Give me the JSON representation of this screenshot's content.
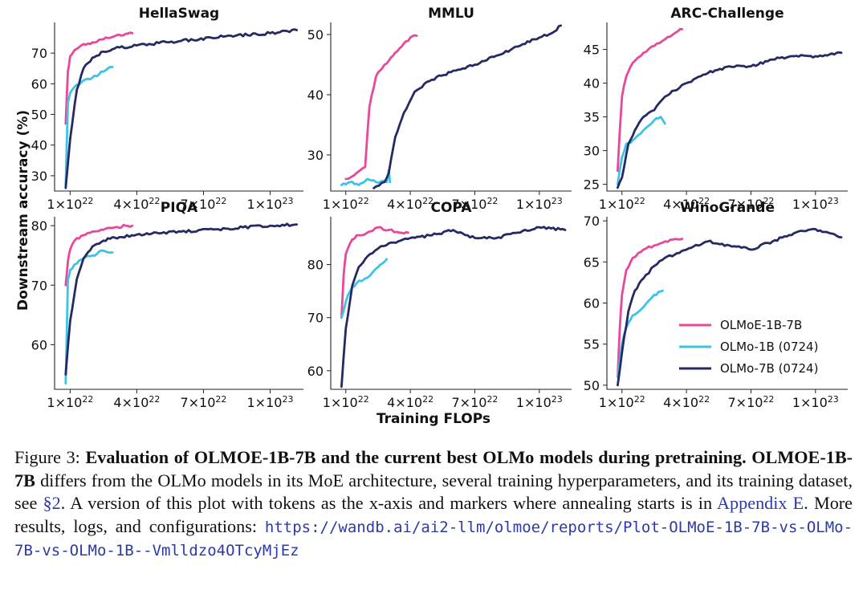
{
  "figure": {
    "y_axis_label": "Downstream accuracy (%)",
    "x_axis_label": "Training FLOPs",
    "legend": [
      {
        "label": "OLMoE-1B-7B",
        "color": "#e8489a"
      },
      {
        "label": "OLMo-1B (0724)",
        "color": "#3cc4e6"
      },
      {
        "label": "OLMo-7B (0724)",
        "color": "#262a63"
      }
    ],
    "x_ticks": [
      {
        "value": 1e+22,
        "base": "1×10",
        "exp": "22"
      },
      {
        "value": 4e+22,
        "base": "4×10",
        "exp": "22"
      },
      {
        "value": 7e+22,
        "base": "7×10",
        "exp": "22"
      },
      {
        "value": 1e+23,
        "base": "1×10",
        "exp": "23"
      }
    ]
  },
  "chart_data": [
    {
      "type": "line",
      "title": "HellaSwag",
      "ylim": [
        25,
        80
      ],
      "yticks": [
        70,
        60,
        50,
        40,
        30
      ],
      "xlim": [
        3e+21,
        1.15e+23
      ],
      "series": [
        {
          "name": "OLMoE-1B-7B",
          "x": [
            8e+21,
            9e+21,
            1e+22,
            1.2e+22,
            1.5e+22,
            2e+22,
            2.5e+22,
            3e+22,
            3.5e+22,
            3.8e+22
          ],
          "y": [
            47,
            64,
            69,
            71,
            72.5,
            73.5,
            74.5,
            75.5,
            76.3,
            76.5
          ]
        },
        {
          "name": "OLMo-1B (0724)",
          "x": [
            8e+21,
            9e+21,
            1e+22,
            1.2e+22,
            1.5e+22,
            2e+22,
            2.5e+22,
            2.9e+22
          ],
          "y": [
            27,
            54,
            57,
            59,
            60.5,
            62,
            64,
            65.5
          ]
        },
        {
          "name": "OLMo-7B (0724)",
          "x": [
            8e+21,
            1e+22,
            1.3e+22,
            1.6e+22,
            2e+22,
            2.5e+22,
            3e+22,
            4e+22,
            5e+22,
            6e+22,
            8e+22,
            1e+23,
            1.12e+23
          ],
          "y": [
            26,
            42,
            58,
            65,
            68.5,
            70.5,
            71.5,
            72.5,
            73.3,
            74,
            75.5,
            76.5,
            77.5
          ]
        }
      ]
    },
    {
      "type": "line",
      "title": "MMLU",
      "ylim": [
        24,
        52
      ],
      "yticks": [
        50,
        40,
        30
      ],
      "xlim": [
        3e+21,
        1.15e+23
      ],
      "series": [
        {
          "name": "OLMoE-1B-7B",
          "x": [
            1e+22,
            1.5e+22,
            1.9e+22,
            2.1e+22,
            2.4e+22,
            2.8e+22,
            3.2e+22,
            3.6e+22,
            4e+22,
            4.3e+22
          ],
          "y": [
            26,
            27,
            28,
            38,
            43,
            45,
            46.5,
            48,
            49.5,
            49.8
          ]
        },
        {
          "name": "OLMo-1B (0724)",
          "x": [
            8e+21,
            1.2e+22,
            1.6e+22,
            2e+22,
            2.4e+22,
            2.9e+22,
            3e+22,
            3.05e+22
          ],
          "y": [
            25,
            25.5,
            25,
            26,
            25.5,
            25.5,
            27.5,
            25.5
          ]
        },
        {
          "name": "OLMo-7B (0724)",
          "x": [
            2.3e+22,
            2.8e+22,
            3e+22,
            3.3e+22,
            3.7e+22,
            4.2e+22,
            5e+22,
            6e+22,
            7e+22,
            8e+22,
            9e+22,
            1e+23,
            1.07e+23,
            1.1e+23
          ],
          "y": [
            24.5,
            25.5,
            27,
            33,
            37,
            40.5,
            42.5,
            44,
            45,
            46.5,
            48,
            49.5,
            50.5,
            51.5
          ]
        }
      ]
    },
    {
      "type": "line",
      "title": "ARC-Challenge",
      "ylim": [
        24,
        49
      ],
      "yticks": [
        45,
        40,
        35,
        30,
        25
      ],
      "xlim": [
        3e+21,
        1.15e+23
      ],
      "series": [
        {
          "name": "OLMoE-1B-7B",
          "x": [
            8e+21,
            9e+21,
            1e+22,
            1.2e+22,
            1.5e+22,
            2e+22,
            2.5e+22,
            3e+22,
            3.5e+22,
            3.8e+22
          ],
          "y": [
            27,
            33,
            38,
            41,
            43,
            44.5,
            45.5,
            46.5,
            47.5,
            48
          ]
        },
        {
          "name": "OLMo-1B (0724)",
          "x": [
            8e+21,
            1e+22,
            1.2e+22,
            1.5e+22,
            2e+22,
            2.5e+22,
            2.8e+22,
            3e+22
          ],
          "y": [
            25,
            29,
            31,
            31.5,
            33,
            34.5,
            35,
            34
          ]
        },
        {
          "name": "OLMo-7B (0724)",
          "x": [
            8e+21,
            1e+22,
            1.3e+22,
            1.6e+22,
            2e+22,
            2.5e+22,
            3e+22,
            4e+22,
            5e+22,
            6e+22,
            7e+22,
            8e+22,
            9e+22,
            1e+23,
            1.12e+23
          ],
          "y": [
            24.5,
            26,
            31,
            33,
            35,
            36,
            38,
            40,
            41.5,
            42.5,
            42.5,
            43.5,
            44,
            44,
            44.5
          ]
        }
      ]
    },
    {
      "type": "line",
      "title": "PIQA",
      "ylim": [
        52.5,
        81.5
      ],
      "yticks": [
        80,
        70,
        60
      ],
      "xlim": [
        3e+21,
        1.15e+23
      ],
      "series": [
        {
          "name": "OLMoE-1B-7B",
          "x": [
            8e+21,
            9e+21,
            1e+22,
            1.2e+22,
            1.5e+22,
            2e+22,
            2.5e+22,
            3e+22,
            3.5e+22,
            3.8e+22
          ],
          "y": [
            70,
            74,
            76,
            77.5,
            78.3,
            79,
            79.3,
            79.7,
            80,
            80
          ]
        },
        {
          "name": "OLMo-1B (0724)",
          "x": [
            8e+21,
            9e+21,
            1e+22,
            1.2e+22,
            1.5e+22,
            2e+22,
            2.5e+22,
            2.9e+22
          ],
          "y": [
            53.5,
            71,
            72.5,
            73.5,
            74.3,
            75,
            75.8,
            75.5
          ]
        },
        {
          "name": "OLMo-7B (0724)",
          "x": [
            8e+21,
            1e+22,
            1.3e+22,
            1.6e+22,
            2e+22,
            2.5e+22,
            3e+22,
            4e+22,
            5e+22,
            6e+22,
            8e+22,
            1e+23,
            1.12e+23
          ],
          "y": [
            55,
            64,
            71,
            74.5,
            76.5,
            77.5,
            78,
            78.5,
            78.7,
            79,
            79.5,
            80,
            80.2
          ]
        }
      ]
    },
    {
      "type": "line",
      "title": "COPA",
      "ylim": [
        56.5,
        89
      ],
      "yticks": [
        80,
        70,
        60
      ],
      "xlim": [
        3e+21,
        1.15e+23
      ],
      "series": [
        {
          "name": "OLMoE-1B-7B",
          "x": [
            8e+21,
            9e+21,
            1e+22,
            1.2e+22,
            1.5e+22,
            2e+22,
            2.5e+22,
            3e+22,
            3.5e+22,
            3.9e+22
          ],
          "y": [
            70,
            78,
            82,
            84,
            85.5,
            86,
            87,
            86.5,
            86,
            86
          ]
        },
        {
          "name": "OLMo-1B (0724)",
          "x": [
            8e+21,
            1e+22,
            1.2e+22,
            1.5e+22,
            2e+22,
            2.5e+22,
            2.9e+22
          ],
          "y": [
            70,
            73,
            75,
            76.5,
            77.5,
            79.5,
            81
          ]
        },
        {
          "name": "OLMo-7B (0724)",
          "x": [
            8e+21,
            1e+22,
            1.3e+22,
            1.6e+22,
            2e+22,
            2.5e+22,
            3e+22,
            4e+22,
            5e+22,
            6e+22,
            7e+22,
            8e+22,
            9e+22,
            1e+23,
            1.12e+23
          ],
          "y": [
            57,
            68,
            76,
            79.5,
            81.5,
            83,
            84,
            85,
            85.5,
            86.5,
            85,
            85,
            86,
            87,
            86.5
          ]
        }
      ]
    },
    {
      "type": "line",
      "title": "WinoGrande",
      "ylim": [
        49.5,
        70.5
      ],
      "yticks": [
        70,
        65,
        60,
        55,
        50
      ],
      "xlim": [
        3e+21,
        1.15e+23
      ],
      "series": [
        {
          "name": "OLMoE-1B-7B",
          "x": [
            8e+21,
            9e+21,
            1e+22,
            1.2e+22,
            1.5e+22,
            2e+22,
            2.5e+22,
            3e+22,
            3.5e+22,
            3.8e+22
          ],
          "y": [
            51,
            57,
            61,
            64,
            65.5,
            66.5,
            67,
            67.5,
            67.8,
            67.8
          ]
        },
        {
          "name": "OLMo-1B (0724)",
          "x": [
            8e+21,
            1e+22,
            1.2e+22,
            1.5e+22,
            2e+22,
            2.5e+22,
            2.9e+22
          ],
          "y": [
            51,
            55,
            57,
            58.5,
            59.5,
            61,
            61.5
          ]
        },
        {
          "name": "OLMo-7B (0724)",
          "x": [
            8e+21,
            1e+22,
            1.3e+22,
            1.6e+22,
            2e+22,
            2.5e+22,
            3e+22,
            4e+22,
            5e+22,
            6e+22,
            7e+22,
            8e+22,
            9e+22,
            1e+23,
            1.12e+23
          ],
          "y": [
            50,
            54,
            59,
            61.5,
            63,
            64.5,
            65.5,
            66.5,
            67.5,
            67,
            66.5,
            67.5,
            68.5,
            69,
            68
          ]
        }
      ]
    }
  ],
  "caption": {
    "label": "Figure 3:",
    "bold_title": "Evaluation of OLMOE-1B-7B and the current best OLMo models during pretraining.",
    "model_name": "OLMOE-1B-7B",
    "text_1": "differs from the OLMo models in its MoE architecture, several training hyperparameters, and its training dataset, see",
    "link_section": "§2",
    "text_2": ". A version of this plot with tokens as the x-axis and markers where annealing starts is in",
    "link_appendix": "Appendix E",
    "text_3": ". More results, logs, and configurations:",
    "url": "https://wandb.ai/ai2-llm/olmoe/reports/Plot-OLMoE-1B-7B-vs-OLMo-7B-vs-OLMo-1B--Vmlldzo4OTcyMjEz"
  }
}
